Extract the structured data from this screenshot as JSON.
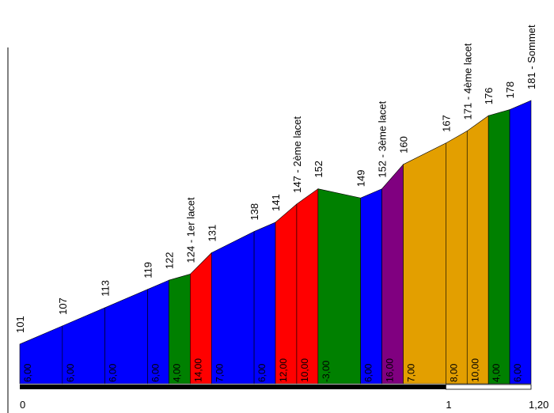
{
  "chart_data": {
    "type": "area",
    "title": "",
    "xlabel": "",
    "ylabel": "",
    "xlim": [
      0,
      1.2
    ],
    "ylim": [
      95,
      185
    ],
    "x_ticks": [
      {
        "value": 0,
        "label": "0"
      },
      {
        "value": 1,
        "label": "1"
      },
      {
        "value": 1.2,
        "label": "1,20"
      }
    ],
    "points": [
      {
        "x": 0.0,
        "y": 101,
        "label": "101"
      },
      {
        "x": 0.1,
        "y": 107,
        "label": "107"
      },
      {
        "x": 0.2,
        "y": 113,
        "label": "113"
      },
      {
        "x": 0.3,
        "y": 119,
        "label": "119"
      },
      {
        "x": 0.35,
        "y": 122,
        "label": "122"
      },
      {
        "x": 0.4,
        "y": 124,
        "label": "124 - 1er lacet"
      },
      {
        "x": 0.45,
        "y": 131,
        "label": "131"
      },
      {
        "x": 0.55,
        "y": 138,
        "label": "138"
      },
      {
        "x": 0.6,
        "y": 141,
        "label": "141"
      },
      {
        "x": 0.65,
        "y": 147,
        "label": "147 - 2ème lacet"
      },
      {
        "x": 0.7,
        "y": 152,
        "label": "152"
      },
      {
        "x": 0.8,
        "y": 149,
        "label": "149"
      },
      {
        "x": 0.85,
        "y": 152,
        "label": "152 - 3ème lacet"
      },
      {
        "x": 0.9,
        "y": 160,
        "label": "160"
      },
      {
        "x": 1.0,
        "y": 167,
        "label": "167"
      },
      {
        "x": 1.05,
        "y": 171,
        "label": "171 - 4ème lacet"
      },
      {
        "x": 1.1,
        "y": 176,
        "label": "176"
      },
      {
        "x": 1.15,
        "y": 178,
        "label": "178"
      },
      {
        "x": 1.2,
        "y": 181,
        "label": "181 - Sommet"
      }
    ],
    "segments": [
      {
        "gradient": "6,00",
        "color": "#0000ff"
      },
      {
        "gradient": "6,00",
        "color": "#0000ff"
      },
      {
        "gradient": "6,00",
        "color": "#0000ff"
      },
      {
        "gradient": "6,00",
        "color": "#0000ff"
      },
      {
        "gradient": "4,00",
        "color": "#008000"
      },
      {
        "gradient": "14,00",
        "color": "#ff0000"
      },
      {
        "gradient": "7,00",
        "color": "#0000ff"
      },
      {
        "gradient": "6,00",
        "color": "#0000ff"
      },
      {
        "gradient": "12,00",
        "color": "#ff0000"
      },
      {
        "gradient": "10,00",
        "color": "#ff0000"
      },
      {
        "gradient": "-3,00",
        "color": "#008000"
      },
      {
        "gradient": "6,00",
        "color": "#0000ff"
      },
      {
        "gradient": "16,00",
        "color": "#800080"
      },
      {
        "gradient": "7,00",
        "color": "#e39f00"
      },
      {
        "gradient": "8,00",
        "color": "#e39f00"
      },
      {
        "gradient": "10,00",
        "color": "#e39f00"
      },
      {
        "gradient": "4,00",
        "color": "#008000"
      },
      {
        "gradient": "6,00",
        "color": "#0000ff"
      }
    ],
    "distance_bar": {
      "filled_to": 1.0,
      "fill_color": "#000000"
    },
    "grid": false,
    "legend": "none"
  }
}
